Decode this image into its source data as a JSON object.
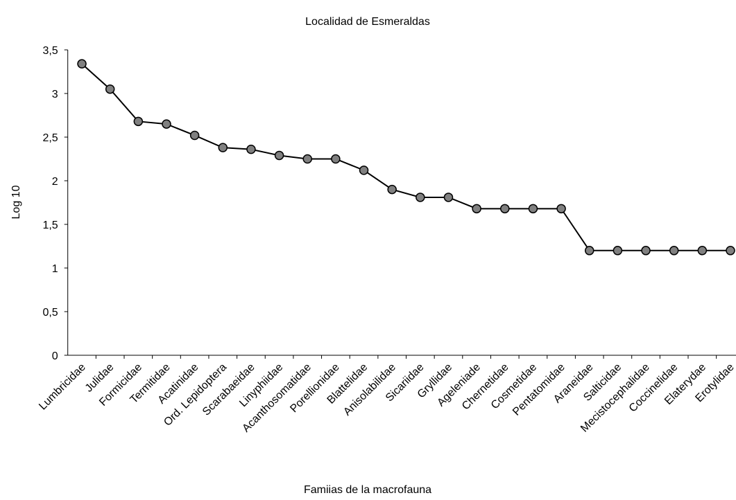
{
  "chart_data": {
    "type": "line",
    "title": "Localidad de Esmeraldas",
    "x_label": "Famiias de la macrofauna",
    "y_label": "Log 10",
    "categories": [
      "Lumbricidae",
      "Julidae",
      "Formicidae",
      "Termitidae",
      "Acatinidae",
      "Ord. Lepidoptera",
      "Scarabaeidae",
      "Linyphiidae",
      "Acanthosomatidae",
      "Porellionidae",
      "Blattelidae",
      "Anisolabilidae",
      "Sicariidae",
      "Gryllidae",
      "Ageleniade",
      "Chernetidae",
      "Cosmetidae",
      "Pentatomidae",
      "Araneidae",
      "Salticidae",
      "Mecistocephalidae",
      "Coccinelidae",
      "Elaterydae",
      "Erotylidae"
    ],
    "values": [
      3.34,
      3.05,
      2.68,
      2.65,
      2.52,
      2.38,
      2.36,
      2.29,
      2.25,
      2.25,
      2.12,
      1.9,
      1.81,
      1.81,
      1.68,
      1.68,
      1.68,
      1.68,
      1.2,
      1.2,
      1.2,
      1.2,
      1.2,
      1.2
    ],
    "color": "#000000",
    "marker_color": "#808080",
    "ylim": [
      0,
      3.5
    ],
    "yticks": [
      0,
      {
        "value": 0.5,
        "label": "0,5"
      },
      1,
      {
        "value": 1.5,
        "label": "1,5"
      },
      2,
      {
        "value": 2.5,
        "label": "2,5"
      },
      3,
      {
        "value": 3.5,
        "label": "3,5"
      }
    ],
    "grid": false
  }
}
